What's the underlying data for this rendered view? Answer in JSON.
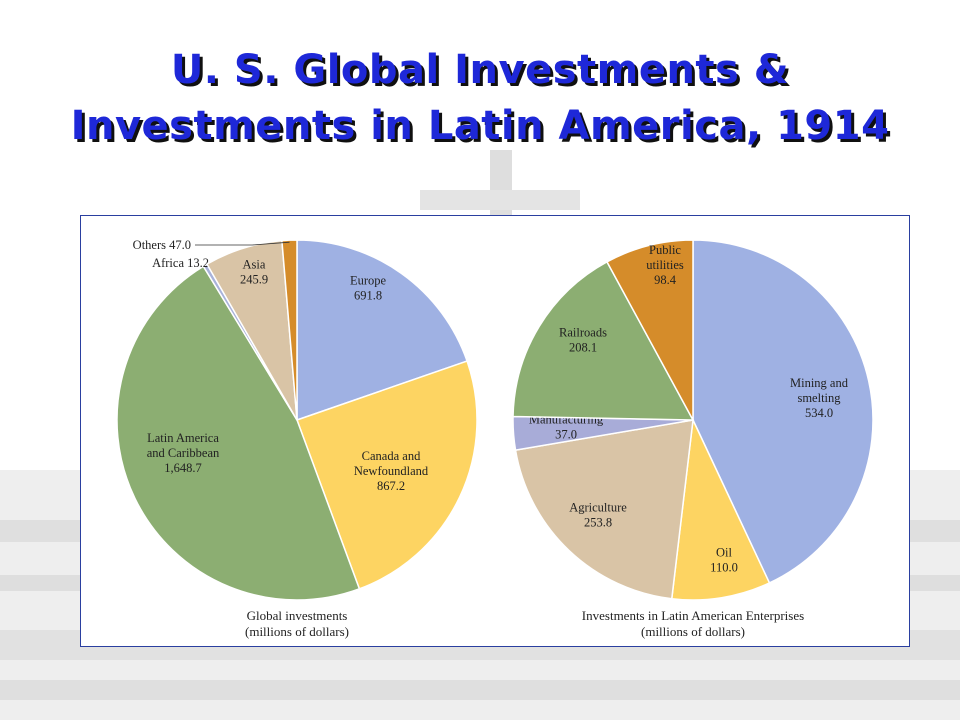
{
  "slide": {
    "title_line1": "U. S. Global Investments &",
    "title_line2": "Investments in Latin America, 1914",
    "title_color": "#1e28d8"
  },
  "chart_data": [
    {
      "type": "pie",
      "caption_line1": "Global investments",
      "caption_line2": "(millions of dollars)",
      "slices": [
        {
          "label": [
            "Europe"
          ],
          "value": 691.8,
          "value_text": "691.8",
          "color": "#9fb1e3"
        },
        {
          "label": [
            "Canada and",
            "Newfoundland"
          ],
          "value": 867.2,
          "value_text": "867.2",
          "color": "#fdd462"
        },
        {
          "label": [
            "Latin America",
            "and Caribbean"
          ],
          "value": 1648.7,
          "value_text": "1,648.7",
          "color": "#8cae72"
        },
        {
          "label": [
            "Africa"
          ],
          "value": 13.2,
          "value_text": "13.2",
          "color": "#a8b2da"
        },
        {
          "label": [
            "Asia"
          ],
          "value": 245.9,
          "value_text": "245.9",
          "color": "#d9c4a6"
        },
        {
          "label": [
            "Others"
          ],
          "value": 47.0,
          "value_text": "47.0",
          "color": "#d58c2a"
        }
      ]
    },
    {
      "type": "pie",
      "caption_line1": "Investments in Latin American Enterprises",
      "caption_line2": "(millions of dollars)",
      "slices": [
        {
          "label": [
            "Mining and",
            "smelting"
          ],
          "value": 534.0,
          "value_text": "534.0",
          "color": "#9fb1e3"
        },
        {
          "label": [
            "Oil"
          ],
          "value": 110.0,
          "value_text": "110.0",
          "color": "#fdd462"
        },
        {
          "label": [
            "Agriculture"
          ],
          "value": 253.8,
          "value_text": "253.8",
          "color": "#d9c4a6"
        },
        {
          "label": [
            "Manufacturing"
          ],
          "value": 37.0,
          "value_text": "37.0",
          "color": "#a8acd8"
        },
        {
          "label": [
            "Railroads"
          ],
          "value": 208.1,
          "value_text": "208.1",
          "color": "#8cae72"
        },
        {
          "label": [
            "Public",
            "utilities"
          ],
          "value": 98.4,
          "value_text": "98.4",
          "color": "#d58c2a"
        }
      ]
    }
  ]
}
